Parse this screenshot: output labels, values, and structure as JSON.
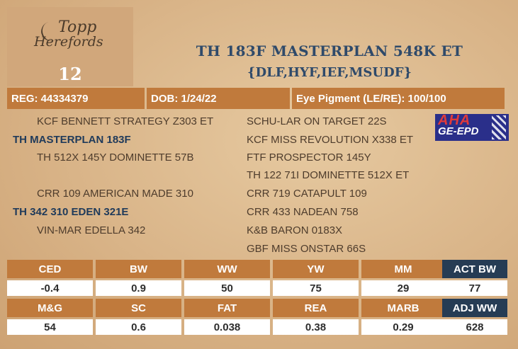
{
  "logo": {
    "line1": "Topp",
    "line2": "Herefords"
  },
  "lot_number": "12",
  "animal": {
    "name": "TH 183F MASTERPLAN 548K ET",
    "genetic_conditions": "{DLF,HYF,IEF,MSUDF}"
  },
  "registration": {
    "reg": "REG: 44334379",
    "dob": "DOB: 1/24/22",
    "eye_pigment": "Eye Pigment (LE/RE): 100/100"
  },
  "pedigree": {
    "sire_side": {
      "sire_sire": "KCF BENNETT STRATEGY Z303 ET",
      "sire": "TH MASTERPLAN 183F",
      "sire_dam": "TH 512X 145Y DOMINETTE 57B"
    },
    "dam_side": {
      "dam_sire": "CRR 109 AMERICAN MADE 310",
      "dam": "TH 342 310 EDEN 321E",
      "dam_dam": "VIN-MAR EDELLA 342"
    },
    "third_generation": [
      "SCHU-LAR ON TARGET 22S",
      "KCF MISS REVOLUTION X338 ET",
      "FTF PROSPECTOR 145Y",
      "TH 122 71I DOMINETTE 512X ET",
      "CRR 719 CATAPULT 109",
      "CRR 433 NADEAN 758",
      "K&B BARON 0183X",
      "GBF MISS ONSTAR 66S"
    ]
  },
  "badge": {
    "top": "AHA",
    "bottom": "GE-EPD",
    "icon": "dna-helix-icon"
  },
  "epds": {
    "row1": [
      {
        "label": "CED",
        "value": "-0.4"
      },
      {
        "label": "BW",
        "value": "0.9"
      },
      {
        "label": "WW",
        "value": "50"
      },
      {
        "label": "YW",
        "value": "75"
      },
      {
        "label": "MM",
        "value": "29"
      }
    ],
    "row2": [
      {
        "label": "M&G",
        "value": "54"
      },
      {
        "label": "SC",
        "value": "0.6"
      },
      {
        "label": "FAT",
        "value": "0.038"
      },
      {
        "label": "REA",
        "value": "0.38"
      },
      {
        "label": "MARB",
        "value": "0.29"
      }
    ]
  },
  "actuals": {
    "act_bw_label": "ACT BW",
    "act_bw_value": "77",
    "adj_ww_label": "ADJ WW",
    "adj_ww_value": "628"
  },
  "colors": {
    "accent": "#c07a3c",
    "title": "#2f4a6a",
    "side_header": "#263c54",
    "background": "#d9b488"
  }
}
